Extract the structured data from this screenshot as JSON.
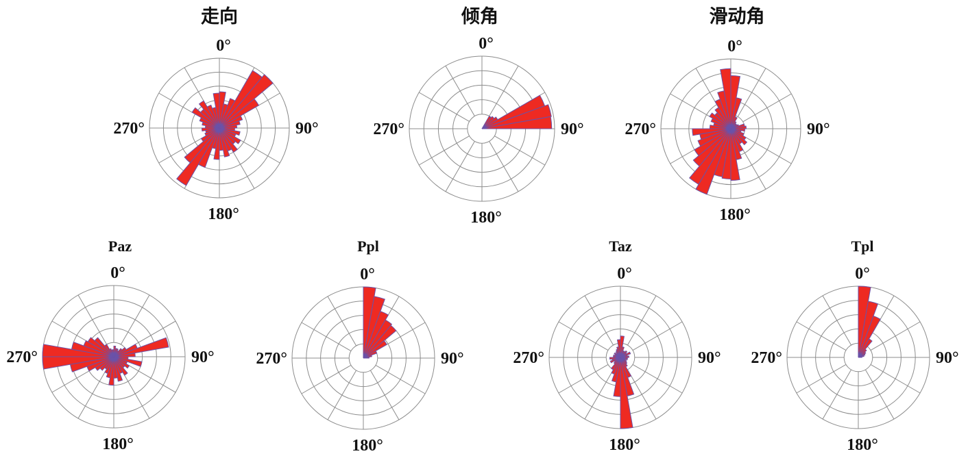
{
  "colors": {
    "petal_fill": "#ee2a22",
    "petal_edge": "#6a52a8",
    "grid": "#8c8c8c",
    "text": "#111111"
  },
  "chart_data": [
    {
      "type": "bar",
      "polar": true,
      "title": "走向",
      "angle_labels": {
        "north": "0°",
        "east": "90°",
        "south": "180°",
        "west": "270°"
      },
      "theta_start": 0,
      "bin_width": 10,
      "values": [
        0.52,
        0.35,
        0.45,
        0.95,
        1.0,
        0.65,
        0.35,
        0.3,
        0.25,
        0.22,
        0.3,
        0.25,
        0.35,
        0.3,
        0.4,
        0.35,
        0.42,
        0.32,
        0.45,
        0.3,
        0.6,
        0.95,
        0.65,
        0.3,
        0.22,
        0.2,
        0.25,
        0.2,
        0.25,
        0.3,
        0.45,
        0.35,
        0.45,
        0.35,
        0.3,
        0.5
      ],
      "rlim": [
        0,
        1
      ],
      "rticks": [
        0.2,
        0.4,
        0.6,
        0.8,
        1.0
      ],
      "theta_grid_step": 30,
      "grid": true
    },
    {
      "type": "bar",
      "polar": true,
      "title": "倾角",
      "angle_labels": {
        "north": "0°",
        "east": "90°",
        "south": "180°",
        "west": "270°"
      },
      "theta_start": 0,
      "bin_width": 10,
      "values": [
        0,
        0,
        0,
        0.2,
        0.22,
        0.25,
        0.92,
        0.97,
        0.96
      ],
      "rlim": [
        0,
        1
      ],
      "rticks": [
        0.2,
        0.4,
        0.6,
        0.8,
        1.0
      ],
      "theta_grid_step": 30,
      "grid": true
    },
    {
      "type": "bar",
      "polar": true,
      "title": "滑动角",
      "angle_labels": {
        "north": "0°",
        "east": "90°",
        "south": "180°",
        "west": "270°"
      },
      "theta_start": 0,
      "bin_width": 10,
      "values": [
        0.76,
        0.45,
        0.18,
        0.12,
        0.1,
        0.1,
        0.12,
        0.2,
        0.22,
        0.2,
        0.15,
        0.2,
        0.25,
        0.3,
        0.25,
        0.35,
        0.45,
        0.74,
        0.72,
        0.7,
        1.0,
        0.92,
        0.7,
        0.6,
        0.5,
        0.45,
        0.55,
        0.3,
        0.25,
        0.3,
        0.35,
        0.3,
        0.35,
        0.45,
        0.55,
        0.86
      ],
      "rlim": [
        0,
        1
      ],
      "rticks": [
        0.2,
        0.4,
        0.6,
        0.8,
        1.0
      ],
      "theta_grid_step": 30,
      "grid": true
    },
    {
      "type": "bar",
      "polar": true,
      "title": "Paz",
      "angle_labels": {
        "north": "0°",
        "east": "90°",
        "south": "180°",
        "west": "270°"
      },
      "theta_start": 0,
      "bin_width": 10,
      "values": [
        0.15,
        0.12,
        0.12,
        0.1,
        0.15,
        0.2,
        0.35,
        0.78,
        0.3,
        0.2,
        0.4,
        0.2,
        0.25,
        0.2,
        0.3,
        0.25,
        0.35,
        0.3,
        0.4,
        0.3,
        0.25,
        0.2,
        0.25,
        0.3,
        0.4,
        0.62,
        1.0,
        1.0,
        0.6,
        0.45,
        0.42,
        0.35,
        0.2,
        0.12,
        0.1,
        0.1
      ],
      "rlim": [
        0,
        1
      ],
      "rticks": [
        0.2,
        0.4,
        0.6,
        0.8,
        1.0
      ],
      "theta_grid_step": 30,
      "grid": true
    },
    {
      "type": "bar",
      "polar": true,
      "title": "Ppl",
      "angle_labels": {
        "north": "0°",
        "east": "90°",
        "south": "180°",
        "west": "270°"
      },
      "theta_start": 0,
      "bin_width": 10,
      "values": [
        1.0,
        0.88,
        0.7,
        0.62,
        0.6,
        0.38,
        0.2,
        0.12,
        0.08
      ],
      "rlim": [
        0,
        1
      ],
      "rticks": [
        0.2,
        0.4,
        0.6,
        0.8,
        1.0
      ],
      "theta_grid_step": 30,
      "grid": true
    },
    {
      "type": "bar",
      "polar": true,
      "title": "Taz",
      "angle_labels": {
        "north": "0°",
        "east": "90°",
        "south": "180°",
        "west": "270°"
      },
      "theta_start": 0,
      "bin_width": 10,
      "values": [
        0.3,
        0.15,
        0.1,
        0.1,
        0.12,
        0.1,
        0.15,
        0.1,
        0.12,
        0.1,
        0.1,
        0.08,
        0.1,
        0.12,
        0.15,
        0.3,
        0.55,
        1.0,
        0.55,
        0.35,
        0.25,
        0.2,
        0.12,
        0.1,
        0.15,
        0.12,
        0.15,
        0.1,
        0.1,
        0.08,
        0.1,
        0.08,
        0.1,
        0.12,
        0.15,
        0.25
      ],
      "rlim": [
        0,
        1
      ],
      "rticks": [
        0.2,
        0.4,
        0.6,
        0.8,
        1.0
      ],
      "theta_grid_step": 30,
      "grid": true
    },
    {
      "type": "bar",
      "polar": true,
      "title": "Tpl",
      "angle_labels": {
        "north": "0°",
        "east": "90°",
        "south": "180°",
        "west": "270°"
      },
      "theta_start": 0,
      "bin_width": 10,
      "values": [
        1.0,
        0.8,
        0.62,
        0.3,
        0.15,
        0.12,
        0.1,
        0.08,
        0.05
      ],
      "rlim": [
        0,
        1
      ],
      "rticks": [
        0.2,
        0.4,
        0.6,
        0.8,
        1.0
      ],
      "theta_grid_step": 30,
      "grid": true
    }
  ]
}
